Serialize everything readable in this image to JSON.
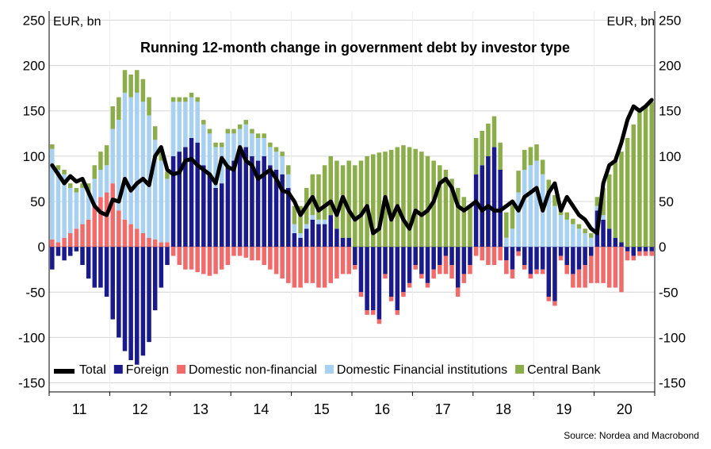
{
  "chart_data": {
    "type": "bar",
    "title": "Running 12-month change in government debt by investor type",
    "ylabel_left": "EUR, bn",
    "ylabel_right": "EUR, bn",
    "ylim": [
      -160,
      260
    ],
    "yticks": [
      250,
      200,
      150,
      100,
      50,
      0,
      -50,
      -100,
      -150
    ],
    "xlim": [
      2011.0,
      2021.0
    ],
    "xtick_labels": [
      "11",
      "12",
      "13",
      "14",
      "15",
      "16",
      "17",
      "18",
      "19",
      "20"
    ],
    "xtick_positions": [
      2011.5,
      2012.5,
      2013.5,
      2014.5,
      2015.5,
      2016.5,
      2017.5,
      2018.5,
      2019.5,
      2020.5
    ],
    "stacked": true,
    "grid": true,
    "legend_position": "bottom",
    "source": "Source: Nordea and Macrobond",
    "colors": {
      "Total": "#000000",
      "Foreign": "#1a1a8c",
      "Domestic non-financial": "#f26b6b",
      "Domestic Financial institutions": "#a8d0f0",
      "Central Bank": "#8cae4a"
    },
    "series": [
      {
        "name": "Total",
        "kind": "line",
        "x": [
          2011.0,
          2011.1,
          2011.2,
          2011.3,
          2011.4,
          2011.5,
          2011.6,
          2011.7,
          2011.8,
          2011.9,
          2012.0,
          2012.1,
          2012.2,
          2012.3,
          2012.4,
          2012.5,
          2012.6,
          2012.7,
          2012.8,
          2012.9,
          2013.0,
          2013.1,
          2013.2,
          2013.3,
          2013.4,
          2013.5,
          2013.6,
          2013.7,
          2013.8,
          2013.9,
          2014.0,
          2014.1,
          2014.2,
          2014.3,
          2014.4,
          2014.5,
          2014.6,
          2014.7,
          2014.8,
          2014.9,
          2015.0,
          2015.1,
          2015.2,
          2015.3,
          2015.4,
          2015.5,
          2015.6,
          2015.7,
          2015.8,
          2015.9,
          2016.0,
          2016.1,
          2016.2,
          2016.3,
          2016.4,
          2016.5,
          2016.6,
          2016.7,
          2016.8,
          2016.9,
          2017.0,
          2017.1,
          2017.2,
          2017.3,
          2017.4,
          2017.5,
          2017.6,
          2017.7,
          2017.8,
          2017.9,
          2018.0,
          2018.1,
          2018.2,
          2018.3,
          2018.4,
          2018.5,
          2018.6,
          2018.7,
          2018.8,
          2018.9,
          2019.0,
          2019.1,
          2019.2,
          2019.3,
          2019.4,
          2019.5,
          2019.6,
          2019.7,
          2019.8,
          2019.9,
          2020.0,
          2020.1,
          2020.2,
          2020.3,
          2020.4,
          2020.5,
          2020.6,
          2020.7,
          2020.8,
          2020.9
        ],
        "values": [
          90,
          80,
          70,
          78,
          72,
          75,
          60,
          45,
          38,
          35,
          52,
          50,
          75,
          62,
          70,
          75,
          68,
          100,
          110,
          85,
          80,
          82,
          95,
          97,
          90,
          85,
          80,
          70,
          98,
          88,
          85,
          110,
          95,
          90,
          75,
          80,
          85,
          75,
          62,
          60,
          50,
          35,
          45,
          55,
          40,
          45,
          50,
          35,
          55,
          40,
          30,
          35,
          45,
          15,
          20,
          55,
          30,
          45,
          30,
          20,
          40,
          35,
          40,
          50,
          70,
          75,
          65,
          45,
          40,
          45,
          50,
          40,
          45,
          40,
          40,
          45,
          50,
          40,
          55,
          60,
          65,
          40,
          60,
          70,
          40,
          55,
          45,
          35,
          30,
          20,
          15,
          70,
          90,
          95,
          115,
          140,
          155,
          150,
          155,
          162
        ]
      },
      {
        "name": "Foreign",
        "kind": "bar",
        "x": [
          2011.0,
          2011.1,
          2011.2,
          2011.3,
          2011.4,
          2011.5,
          2011.6,
          2011.7,
          2011.8,
          2011.9,
          2012.0,
          2012.1,
          2012.2,
          2012.3,
          2012.4,
          2012.5,
          2012.6,
          2012.7,
          2012.8,
          2012.9,
          2013.0,
          2013.1,
          2013.2,
          2013.3,
          2013.4,
          2013.5,
          2013.6,
          2013.7,
          2013.8,
          2013.9,
          2014.0,
          2014.1,
          2014.2,
          2014.3,
          2014.4,
          2014.5,
          2014.6,
          2014.7,
          2014.8,
          2014.9,
          2015.0,
          2015.1,
          2015.2,
          2015.3,
          2015.4,
          2015.5,
          2015.6,
          2015.7,
          2015.8,
          2015.9,
          2016.0,
          2016.1,
          2016.2,
          2016.3,
          2016.4,
          2016.5,
          2016.6,
          2016.7,
          2016.8,
          2016.9,
          2017.0,
          2017.1,
          2017.2,
          2017.3,
          2017.4,
          2017.5,
          2017.6,
          2017.7,
          2017.8,
          2017.9,
          2018.0,
          2018.1,
          2018.2,
          2018.3,
          2018.4,
          2018.5,
          2018.6,
          2018.7,
          2018.8,
          2018.9,
          2019.0,
          2019.1,
          2019.2,
          2019.3,
          2019.4,
          2019.5,
          2019.6,
          2019.7,
          2019.8,
          2019.9,
          2020.0,
          2020.1,
          2020.2,
          2020.3,
          2020.4,
          2020.5,
          2020.6,
          2020.7,
          2020.8,
          2020.9
        ],
        "values": [
          -25,
          -10,
          -15,
          -10,
          -5,
          -20,
          -35,
          -45,
          -45,
          -55,
          -80,
          -100,
          -115,
          -125,
          -130,
          -120,
          -105,
          -70,
          -45,
          -20,
          100,
          105,
          110,
          120,
          115,
          90,
          80,
          65,
          70,
          90,
          95,
          105,
          110,
          100,
          95,
          100,
          90,
          85,
          80,
          65,
          15,
          10,
          20,
          30,
          25,
          25,
          35,
          20,
          10,
          10,
          -20,
          -50,
          -70,
          -70,
          -80,
          -30,
          -55,
          -70,
          -50,
          -40,
          -20,
          -30,
          -40,
          -25,
          -20,
          -10,
          -20,
          -45,
          -30,
          -20,
          80,
          90,
          100,
          110,
          85,
          -15,
          -25,
          -5,
          -20,
          -30,
          -25,
          -25,
          -55,
          -60,
          -10,
          -20,
          -30,
          -25,
          -20,
          -10,
          40,
          30,
          20,
          10,
          5,
          -5,
          -10,
          -5,
          -5,
          -5
        ]
      },
      {
        "name": "Domestic non-financial",
        "kind": "bar",
        "x": [
          2011.0,
          2011.1,
          2011.2,
          2011.3,
          2011.4,
          2011.5,
          2011.6,
          2011.7,
          2011.8,
          2011.9,
          2012.0,
          2012.1,
          2012.2,
          2012.3,
          2012.4,
          2012.5,
          2012.6,
          2012.7,
          2012.8,
          2012.9,
          2013.0,
          2013.1,
          2013.2,
          2013.3,
          2013.4,
          2013.5,
          2013.6,
          2013.7,
          2013.8,
          2013.9,
          2014.0,
          2014.1,
          2014.2,
          2014.3,
          2014.4,
          2014.5,
          2014.6,
          2014.7,
          2014.8,
          2014.9,
          2015.0,
          2015.1,
          2015.2,
          2015.3,
          2015.4,
          2015.5,
          2015.6,
          2015.7,
          2015.8,
          2015.9,
          2016.0,
          2016.1,
          2016.2,
          2016.3,
          2016.4,
          2016.5,
          2016.6,
          2016.7,
          2016.8,
          2016.9,
          2017.0,
          2017.1,
          2017.2,
          2017.3,
          2017.4,
          2017.5,
          2017.6,
          2017.7,
          2017.8,
          2017.9,
          2018.0,
          2018.1,
          2018.2,
          2018.3,
          2018.4,
          2018.5,
          2018.6,
          2018.7,
          2018.8,
          2018.9,
          2019.0,
          2019.1,
          2019.2,
          2019.3,
          2019.4,
          2019.5,
          2019.6,
          2019.7,
          2019.8,
          2019.9,
          2020.0,
          2020.1,
          2020.2,
          2020.3,
          2020.4,
          2020.5,
          2020.6,
          2020.7,
          2020.8,
          2020.9
        ],
        "values": [
          8,
          5,
          10,
          15,
          20,
          25,
          30,
          45,
          55,
          60,
          70,
          40,
          30,
          25,
          20,
          15,
          10,
          8,
          5,
          5,
          -10,
          -20,
          -25,
          -25,
          -28,
          -30,
          -32,
          -30,
          -25,
          -20,
          -10,
          -10,
          -12,
          -15,
          -15,
          -20,
          -25,
          -30,
          -35,
          -40,
          -45,
          -45,
          -40,
          -40,
          -45,
          -45,
          -40,
          -35,
          -30,
          -30,
          -5,
          -5,
          -5,
          -5,
          -5,
          -5,
          -5,
          -5,
          -5,
          -5,
          -5,
          -5,
          -5,
          -10,
          -10,
          -20,
          -15,
          -10,
          -10,
          -10,
          -10,
          -15,
          -20,
          -20,
          -15,
          -15,
          -10,
          -5,
          -5,
          -5,
          -5,
          -5,
          -5,
          -5,
          -5,
          -10,
          -15,
          -20,
          -25,
          -30,
          -40,
          -40,
          -45,
          -45,
          -50,
          -10,
          -5,
          -5,
          -5,
          -5
        ]
      },
      {
        "name": "Domestic Financial institutions",
        "kind": "bar",
        "x": [
          2011.0,
          2011.1,
          2011.2,
          2011.3,
          2011.4,
          2011.5,
          2011.6,
          2011.7,
          2011.8,
          2011.9,
          2012.0,
          2012.1,
          2012.2,
          2012.3,
          2012.4,
          2012.5,
          2012.6,
          2012.7,
          2012.8,
          2012.9,
          2013.0,
          2013.1,
          2013.2,
          2013.3,
          2013.4,
          2013.5,
          2013.6,
          2013.7,
          2013.8,
          2013.9,
          2014.0,
          2014.1,
          2014.2,
          2014.3,
          2014.4,
          2014.5,
          2014.6,
          2014.7,
          2014.8,
          2014.9,
          2015.0,
          2015.1,
          2015.2,
          2015.3,
          2015.4,
          2015.5,
          2015.6,
          2015.7,
          2015.8,
          2015.9,
          2016.0,
          2016.1,
          2016.2,
          2016.3,
          2016.4,
          2016.5,
          2016.6,
          2016.7,
          2016.8,
          2016.9,
          2017.0,
          2017.1,
          2017.2,
          2017.3,
          2017.4,
          2017.5,
          2017.6,
          2017.7,
          2017.8,
          2017.9,
          2018.0,
          2018.1,
          2018.2,
          2018.3,
          2018.4,
          2018.5,
          2018.6,
          2018.7,
          2018.8,
          2018.9,
          2019.0,
          2019.1,
          2019.2,
          2019.3,
          2019.4,
          2019.5,
          2019.6,
          2019.7,
          2019.8,
          2019.9,
          2020.0,
          2020.1,
          2020.2,
          2020.3,
          2020.4,
          2020.5,
          2020.6,
          2020.7,
          2020.8,
          2020.9
        ],
        "values": [
          100,
          80,
          70,
          50,
          40,
          40,
          30,
          30,
          30,
          30,
          60,
          100,
          140,
          140,
          150,
          145,
          135,
          110,
          90,
          70,
          60,
          55,
          50,
          45,
          45,
          45,
          45,
          45,
          40,
          35,
          30,
          25,
          25,
          25,
          25,
          20,
          20,
          20,
          20,
          15,
          10,
          5,
          5,
          5,
          5,
          5,
          0,
          0,
          0,
          0,
          0,
          0,
          0,
          0,
          0,
          0,
          0,
          0,
          0,
          0,
          0,
          0,
          0,
          0,
          0,
          0,
          0,
          0,
          0,
          0,
          0,
          0,
          0,
          0,
          0,
          10,
          20,
          60,
          85,
          90,
          95,
          80,
          60,
          45,
          35,
          30,
          25,
          20,
          15,
          10,
          5,
          5,
          0,
          0,
          0,
          0,
          0,
          0,
          0,
          0
        ]
      },
      {
        "name": "Central Bank",
        "kind": "bar",
        "x": [
          2011.0,
          2011.1,
          2011.2,
          2011.3,
          2011.4,
          2011.5,
          2011.6,
          2011.7,
          2011.8,
          2011.9,
          2012.0,
          2012.1,
          2012.2,
          2012.3,
          2012.4,
          2012.5,
          2012.6,
          2012.7,
          2012.8,
          2012.9,
          2013.0,
          2013.1,
          2013.2,
          2013.3,
          2013.4,
          2013.5,
          2013.6,
          2013.7,
          2013.8,
          2013.9,
          2014.0,
          2014.1,
          2014.2,
          2014.3,
          2014.4,
          2014.5,
          2014.6,
          2014.7,
          2014.8,
          2014.9,
          2015.0,
          2015.1,
          2015.2,
          2015.3,
          2015.4,
          2015.5,
          2015.6,
          2015.7,
          2015.8,
          2015.9,
          2016.0,
          2016.1,
          2016.2,
          2016.3,
          2016.4,
          2016.5,
          2016.6,
          2016.7,
          2016.8,
          2016.9,
          2017.0,
          2017.1,
          2017.2,
          2017.3,
          2017.4,
          2017.5,
          2017.6,
          2017.7,
          2017.8,
          2017.9,
          2018.0,
          2018.1,
          2018.2,
          2018.3,
          2018.4,
          2018.5,
          2018.6,
          2018.7,
          2018.8,
          2018.9,
          2019.0,
          2019.1,
          2019.2,
          2019.3,
          2019.4,
          2019.5,
          2019.6,
          2019.7,
          2019.8,
          2019.9,
          2020.0,
          2020.1,
          2020.2,
          2020.3,
          2020.4,
          2020.5,
          2020.6,
          2020.7,
          2020.8,
          2020.9
        ],
        "values": [
          5,
          5,
          5,
          5,
          5,
          5,
          10,
          15,
          20,
          22,
          25,
          25,
          25,
          25,
          25,
          25,
          20,
          15,
          10,
          8,
          5,
          5,
          5,
          5,
          5,
          5,
          5,
          5,
          5,
          5,
          5,
          5,
          5,
          5,
          5,
          5,
          5,
          5,
          5,
          10,
          20,
          30,
          40,
          45,
          50,
          60,
          65,
          75,
          80,
          85,
          90,
          95,
          100,
          102,
          104,
          105,
          107,
          110,
          112,
          110,
          108,
          105,
          100,
          95,
          90,
          85,
          75,
          65,
          55,
          45,
          40,
          38,
          36,
          34,
          30,
          28,
          26,
          24,
          22,
          20,
          18,
          16,
          14,
          12,
          10,
          8,
          6,
          5,
          5,
          5,
          10,
          30,
          60,
          85,
          100,
          120,
          135,
          150,
          155,
          160
        ]
      }
    ]
  }
}
